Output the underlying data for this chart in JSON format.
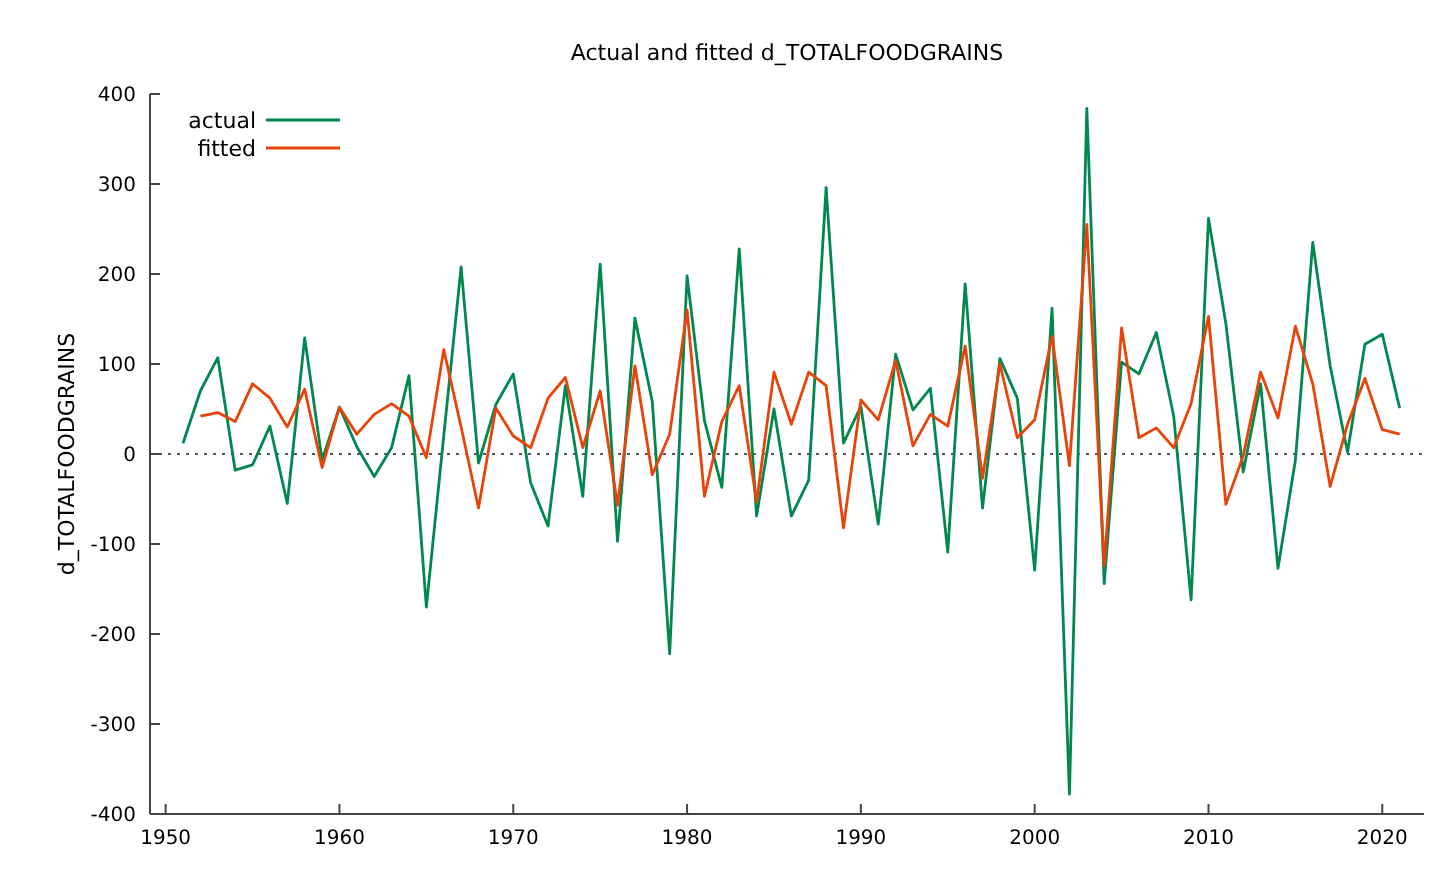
{
  "chart_data": {
    "type": "line",
    "title": "Actual and fitted d_TOTALFOODGRAINS",
    "ylabel": "d_TOTALFOODGRAINS",
    "x": [
      1951,
      1952,
      1953,
      1954,
      1955,
      1956,
      1957,
      1958,
      1959,
      1960,
      1961,
      1962,
      1963,
      1964,
      1965,
      1966,
      1967,
      1968,
      1969,
      1970,
      1971,
      1972,
      1973,
      1974,
      1975,
      1976,
      1977,
      1978,
      1979,
      1980,
      1981,
      1982,
      1983,
      1984,
      1985,
      1986,
      1987,
      1988,
      1989,
      1990,
      1991,
      1992,
      1993,
      1994,
      1995,
      1996,
      1997,
      1998,
      1999,
      2000,
      2001,
      2002,
      2003,
      2004,
      2005,
      2006,
      2007,
      2008,
      2009,
      2010,
      2011,
      2012,
      2013,
      2014,
      2015,
      2016,
      2017,
      2018,
      2019,
      2020,
      2021
    ],
    "series": [
      {
        "name": "actual",
        "color": "#00884f",
        "values": [
          12,
          70,
          107,
          -18,
          -12,
          31,
          -55,
          129,
          -7,
          52,
          8,
          -25,
          7,
          87,
          -170,
          20,
          208,
          -10,
          55,
          89,
          -32,
          -80,
          76,
          -47,
          211,
          -97,
          151,
          58,
          -222,
          198,
          37,
          -37,
          228,
          -69,
          50,
          -69,
          -29,
          296,
          12,
          53,
          -78,
          111,
          49,
          73,
          -109,
          189,
          -60,
          106,
          62,
          -129,
          162,
          -378,
          384,
          -144,
          102,
          89,
          135,
          42,
          -162,
          262,
          145,
          -20,
          78,
          -127,
          -7,
          235,
          98,
          2,
          122,
          133,
          51
        ]
      },
      {
        "name": "fitted",
        "color": "#e8440a",
        "values": [
          null,
          42,
          46,
          36,
          78,
          62,
          30,
          72,
          -15,
          52,
          22,
          44,
          56,
          42,
          -4,
          116,
          30,
          -60,
          51,
          20,
          7,
          62,
          85,
          7,
          70,
          -57,
          98,
          -23,
          22,
          160,
          -47,
          36,
          76,
          -53,
          91,
          33,
          91,
          76,
          -82,
          60,
          38,
          104,
          9,
          44,
          31,
          120,
          -27,
          100,
          18,
          38,
          131,
          -13,
          255,
          -124,
          140,
          18,
          29,
          7,
          56,
          153,
          -56,
          -2,
          91,
          40,
          142,
          78,
          -36,
          33,
          84,
          27,
          22
        ]
      }
    ],
    "xlim": [
      1949.1,
      2022.4
    ],
    "ylim": [
      -400,
      400
    ],
    "xticks": [
      1950,
      1960,
      1970,
      1980,
      1990,
      2000,
      2010,
      2020
    ],
    "yticks": [
      -400,
      -300,
      -200,
      -100,
      0,
      100,
      200,
      300,
      400
    ],
    "ref_lines": [
      {
        "axis": "y",
        "value": 0,
        "line_style": "dotted",
        "color": "#555555"
      }
    ],
    "grid": false,
    "legend": "top left",
    "marker": "none",
    "line_style": "solid"
  }
}
